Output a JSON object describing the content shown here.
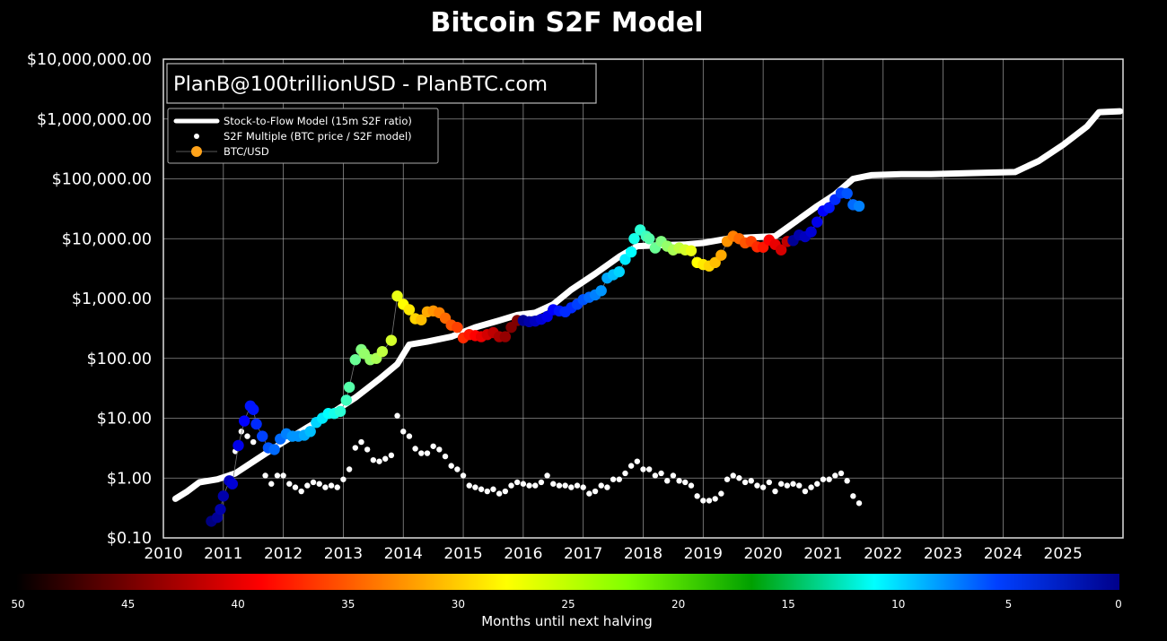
{
  "chart_data": {
    "type": "scatter",
    "title": "Bitcoin S2F Model",
    "annotation": "PlanB@100trillionUSD - PlanBTC.com",
    "xlabel": "",
    "ylabel": "",
    "y_scale": "log",
    "x_range": [
      2010,
      2026
    ],
    "ylim": [
      0.1,
      10000000
    ],
    "grid": true,
    "legend_position": "top-left",
    "x_ticks": [
      "2010",
      "2011",
      "2012",
      "2013",
      "2014",
      "2015",
      "2016",
      "2017",
      "2018",
      "2019",
      "2020",
      "2021",
      "2022",
      "2023",
      "2024",
      "2025"
    ],
    "y_ticks": [
      "$0.10",
      "$1.00",
      "$10.00",
      "$100.00",
      "$1,000.00",
      "$10,000.00",
      "$100,000.00",
      "$1,000,000.00",
      "$10,000,000.00"
    ],
    "legend": [
      {
        "label": "Stock-to-Flow Model (15m S2F ratio)",
        "symbol": "line",
        "color": "#ffffff"
      },
      {
        "label": "S2F Multiple (BTC price / S2F model)",
        "symbol": "dot-small",
        "color": "#ffffff"
      },
      {
        "label": "BTC/USD",
        "symbol": "dot",
        "color": "#ffa31a"
      }
    ],
    "series": [
      {
        "name": "Stock-to-Flow Model (15m S2F ratio)",
        "style": "line",
        "color": "#ffffff",
        "points": [
          [
            2010.2,
            0.45
          ],
          [
            2010.4,
            0.6
          ],
          [
            2010.6,
            0.85
          ],
          [
            2010.9,
            0.95
          ],
          [
            2011.2,
            1.2
          ],
          [
            2011.6,
            2.2
          ],
          [
            2012.0,
            4
          ],
          [
            2012.4,
            7
          ],
          [
            2012.8,
            12
          ],
          [
            2013.2,
            22
          ],
          [
            2013.6,
            45
          ],
          [
            2013.9,
            80
          ],
          [
            2014.1,
            170
          ],
          [
            2014.4,
            190
          ],
          [
            2014.8,
            230
          ],
          [
            2015.2,
            330
          ],
          [
            2015.6,
            430
          ],
          [
            2015.9,
            530
          ],
          [
            2016.2,
            580
          ],
          [
            2016.5,
            800
          ],
          [
            2016.8,
            1400
          ],
          [
            2017.2,
            2600
          ],
          [
            2017.6,
            5000
          ],
          [
            2017.9,
            7500
          ],
          [
            2018.3,
            7800
          ],
          [
            2018.7,
            8000
          ],
          [
            2019.0,
            8500
          ],
          [
            2019.4,
            10000
          ],
          [
            2019.8,
            10500
          ],
          [
            2020.2,
            11000
          ],
          [
            2020.5,
            18000
          ],
          [
            2020.9,
            35000
          ],
          [
            2021.2,
            55000
          ],
          [
            2021.5,
            100000
          ],
          [
            2021.8,
            115000
          ],
          [
            2022.3,
            120000
          ],
          [
            2022.8,
            120000
          ],
          [
            2023.5,
            125000
          ],
          [
            2024.2,
            130000
          ],
          [
            2024.6,
            200000
          ],
          [
            2025.0,
            370000
          ],
          [
            2025.4,
            750000
          ],
          [
            2025.6,
            1300000
          ],
          [
            2025.95,
            1350000
          ]
        ]
      },
      {
        "name": "S2F Multiple (BTC price / S2F model)",
        "style": "dots-small",
        "color": "#ffffff",
        "points": [
          [
            2011.2,
            2.8
          ],
          [
            2011.3,
            6
          ],
          [
            2011.4,
            5
          ],
          [
            2011.5,
            4
          ],
          [
            2011.7,
            1.1
          ],
          [
            2011.8,
            0.8
          ],
          [
            2011.9,
            1.1
          ],
          [
            2012.0,
            1.1
          ],
          [
            2012.1,
            0.8
          ],
          [
            2012.2,
            0.7
          ],
          [
            2012.3,
            0.6
          ],
          [
            2012.4,
            0.75
          ],
          [
            2012.5,
            0.85
          ],
          [
            2012.6,
            0.8
          ],
          [
            2012.7,
            0.7
          ],
          [
            2012.8,
            0.75
          ],
          [
            2012.9,
            0.7
          ],
          [
            2013.0,
            0.95
          ],
          [
            2013.1,
            1.4
          ],
          [
            2013.2,
            3.2
          ],
          [
            2013.3,
            4
          ],
          [
            2013.4,
            3
          ],
          [
            2013.5,
            2
          ],
          [
            2013.6,
            1.9
          ],
          [
            2013.7,
            2.1
          ],
          [
            2013.8,
            2.4
          ],
          [
            2013.9,
            11
          ],
          [
            2014.0,
            6
          ],
          [
            2014.1,
            5
          ],
          [
            2014.2,
            3.1
          ],
          [
            2014.3,
            2.6
          ],
          [
            2014.4,
            2.6
          ],
          [
            2014.5,
            3.4
          ],
          [
            2014.6,
            3
          ],
          [
            2014.7,
            2.3
          ],
          [
            2014.8,
            1.6
          ],
          [
            2014.9,
            1.4
          ],
          [
            2015.0,
            1.1
          ],
          [
            2015.1,
            0.75
          ],
          [
            2015.2,
            0.7
          ],
          [
            2015.3,
            0.65
          ],
          [
            2015.4,
            0.6
          ],
          [
            2015.5,
            0.65
          ],
          [
            2015.6,
            0.55
          ],
          [
            2015.7,
            0.6
          ],
          [
            2015.8,
            0.75
          ],
          [
            2015.9,
            0.85
          ],
          [
            2016.0,
            0.8
          ],
          [
            2016.1,
            0.75
          ],
          [
            2016.2,
            0.75
          ],
          [
            2016.3,
            0.85
          ],
          [
            2016.4,
            1.1
          ],
          [
            2016.5,
            0.8
          ],
          [
            2016.6,
            0.75
          ],
          [
            2016.7,
            0.75
          ],
          [
            2016.8,
            0.7
          ],
          [
            2016.9,
            0.75
          ],
          [
            2017.0,
            0.7
          ],
          [
            2017.1,
            0.55
          ],
          [
            2017.2,
            0.6
          ],
          [
            2017.3,
            0.75
          ],
          [
            2017.4,
            0.7
          ],
          [
            2017.5,
            0.95
          ],
          [
            2017.6,
            0.95
          ],
          [
            2017.7,
            1.2
          ],
          [
            2017.8,
            1.6
          ],
          [
            2017.9,
            1.9
          ],
          [
            2018.0,
            1.4
          ],
          [
            2018.1,
            1.4
          ],
          [
            2018.2,
            1.1
          ],
          [
            2018.3,
            1.2
          ],
          [
            2018.4,
            0.9
          ],
          [
            2018.5,
            1.1
          ],
          [
            2018.6,
            0.9
          ],
          [
            2018.7,
            0.85
          ],
          [
            2018.8,
            0.75
          ],
          [
            2018.9,
            0.5
          ],
          [
            2019.0,
            0.42
          ],
          [
            2019.1,
            0.42
          ],
          [
            2019.2,
            0.45
          ],
          [
            2019.3,
            0.55
          ],
          [
            2019.4,
            0.95
          ],
          [
            2019.5,
            1.1
          ],
          [
            2019.6,
            1
          ],
          [
            2019.7,
            0.85
          ],
          [
            2019.8,
            0.9
          ],
          [
            2019.9,
            0.75
          ],
          [
            2020.0,
            0.7
          ],
          [
            2020.1,
            0.85
          ],
          [
            2020.2,
            0.6
          ],
          [
            2020.3,
            0.8
          ],
          [
            2020.4,
            0.75
          ],
          [
            2020.5,
            0.8
          ],
          [
            2020.6,
            0.75
          ],
          [
            2020.7,
            0.6
          ],
          [
            2020.8,
            0.7
          ],
          [
            2020.9,
            0.8
          ],
          [
            2021.0,
            0.95
          ],
          [
            2021.1,
            0.95
          ],
          [
            2021.2,
            1.1
          ],
          [
            2021.3,
            1.2
          ],
          [
            2021.4,
            0.9
          ],
          [
            2021.5,
            0.5
          ],
          [
            2021.6,
            0.38
          ]
        ]
      },
      {
        "name": "BTC/USD",
        "style": "dots",
        "color_note": "colored by months until next halving",
        "points": [
          [
            2010.8,
            0.19,
            48
          ],
          [
            2010.9,
            0.22,
            47
          ],
          [
            2010.95,
            0.3,
            46
          ],
          [
            2011.0,
            0.5,
            46
          ],
          [
            2011.1,
            0.9,
            45
          ],
          [
            2011.15,
            0.8,
            44
          ],
          [
            2011.25,
            3.5,
            43
          ],
          [
            2011.35,
            9,
            42
          ],
          [
            2011.45,
            16,
            41
          ],
          [
            2011.5,
            14,
            41
          ],
          [
            2011.55,
            8,
            40
          ],
          [
            2011.65,
            5,
            39
          ],
          [
            2011.75,
            3.2,
            38
          ],
          [
            2011.85,
            3,
            37
          ],
          [
            2011.95,
            4.5,
            37
          ],
          [
            2012.05,
            5.5,
            36
          ],
          [
            2012.15,
            5,
            35
          ],
          [
            2012.25,
            5,
            35
          ],
          [
            2012.35,
            5.2,
            34
          ],
          [
            2012.45,
            6,
            33
          ],
          [
            2012.55,
            8.5,
            32
          ],
          [
            2012.65,
            10,
            31
          ],
          [
            2012.75,
            12,
            30
          ],
          [
            2012.85,
            12,
            29
          ],
          [
            2012.95,
            13,
            28
          ],
          [
            2013.05,
            20,
            27
          ],
          [
            2013.1,
            33,
            26
          ],
          [
            2013.2,
            95,
            25
          ],
          [
            2013.3,
            140,
            24
          ],
          [
            2013.35,
            120,
            23
          ],
          [
            2013.45,
            95,
            23
          ],
          [
            2013.55,
            100,
            22
          ],
          [
            2013.65,
            130,
            21
          ],
          [
            2013.8,
            200,
            20
          ],
          [
            2013.9,
            1100,
            19
          ],
          [
            2014.0,
            800,
            18
          ],
          [
            2014.1,
            650,
            17
          ],
          [
            2014.2,
            460,
            16
          ],
          [
            2014.3,
            440,
            15
          ],
          [
            2014.4,
            600,
            14
          ],
          [
            2014.5,
            620,
            13
          ],
          [
            2014.6,
            580,
            12
          ],
          [
            2014.7,
            470,
            11
          ],
          [
            2014.8,
            360,
            10
          ],
          [
            2014.9,
            330,
            9
          ],
          [
            2015.0,
            220,
            8
          ],
          [
            2015.1,
            250,
            7
          ],
          [
            2015.2,
            240,
            6
          ],
          [
            2015.3,
            230,
            5
          ],
          [
            2015.4,
            250,
            4
          ],
          [
            2015.5,
            270,
            3
          ],
          [
            2015.6,
            230,
            2
          ],
          [
            2015.7,
            230,
            1
          ],
          [
            2015.8,
            330,
            0
          ],
          [
            2015.9,
            430,
            -1
          ],
          [
            2016.0,
            430,
            47
          ],
          [
            2016.1,
            410,
            46
          ],
          [
            2016.2,
            420,
            45
          ],
          [
            2016.3,
            450,
            44
          ],
          [
            2016.4,
            500,
            43
          ],
          [
            2016.5,
            650,
            42
          ],
          [
            2016.6,
            620,
            41
          ],
          [
            2016.7,
            600,
            40
          ],
          [
            2016.8,
            700,
            40
          ],
          [
            2016.9,
            800,
            39
          ],
          [
            2017.0,
            960,
            38
          ],
          [
            2017.1,
            1050,
            37
          ],
          [
            2017.2,
            1150,
            36
          ],
          [
            2017.3,
            1350,
            35
          ],
          [
            2017.4,
            2200,
            34
          ],
          [
            2017.5,
            2500,
            33
          ],
          [
            2017.6,
            2800,
            32
          ],
          [
            2017.7,
            4500,
            31
          ],
          [
            2017.8,
            6000,
            30
          ],
          [
            2017.85,
            10000,
            29
          ],
          [
            2017.95,
            14000,
            28
          ],
          [
            2018.05,
            11000,
            27
          ],
          [
            2018.1,
            10000,
            26
          ],
          [
            2018.2,
            7000,
            25
          ],
          [
            2018.3,
            9000,
            24
          ],
          [
            2018.4,
            7500,
            23
          ],
          [
            2018.5,
            6500,
            22
          ],
          [
            2018.6,
            7000,
            21
          ],
          [
            2018.7,
            6500,
            20
          ],
          [
            2018.8,
            6300,
            19
          ],
          [
            2018.9,
            4000,
            18
          ],
          [
            2019.0,
            3700,
            17
          ],
          [
            2019.1,
            3500,
            16
          ],
          [
            2019.2,
            4000,
            15
          ],
          [
            2019.3,
            5300,
            14
          ],
          [
            2019.4,
            9000,
            13
          ],
          [
            2019.5,
            11000,
            12
          ],
          [
            2019.6,
            10000,
            11
          ],
          [
            2019.7,
            8500,
            10
          ],
          [
            2019.8,
            9000,
            9
          ],
          [
            2019.9,
            7300,
            8
          ],
          [
            2020.0,
            7200,
            7
          ],
          [
            2020.1,
            9500,
            6
          ],
          [
            2020.2,
            8000,
            5
          ],
          [
            2020.3,
            6500,
            4
          ],
          [
            2020.4,
            9000,
            3
          ],
          [
            2020.5,
            9300,
            47
          ],
          [
            2020.6,
            11500,
            46
          ],
          [
            2020.7,
            10800,
            45
          ],
          [
            2020.8,
            13000,
            44
          ],
          [
            2020.9,
            19000,
            43
          ],
          [
            2021.0,
            29000,
            42
          ],
          [
            2021.1,
            33000,
            41
          ],
          [
            2021.2,
            45000,
            40
          ],
          [
            2021.3,
            58000,
            39
          ],
          [
            2021.4,
            57000,
            38
          ],
          [
            2021.5,
            37000,
            37
          ],
          [
            2021.6,
            35000,
            36
          ]
        ]
      }
    ],
    "colorbar": {
      "label": "Months until next halving",
      "ticks": [
        "50",
        "45",
        "40",
        "35",
        "30",
        "25",
        "20",
        "15",
        "10",
        "5",
        "0"
      ],
      "colors": [
        "#000000",
        "#7f0000",
        "#ff0000",
        "#ff7f00",
        "#ffff00",
        "#7fff00",
        "#00a000",
        "#00ffff",
        "#0040ff",
        "#00008b"
      ]
    }
  }
}
